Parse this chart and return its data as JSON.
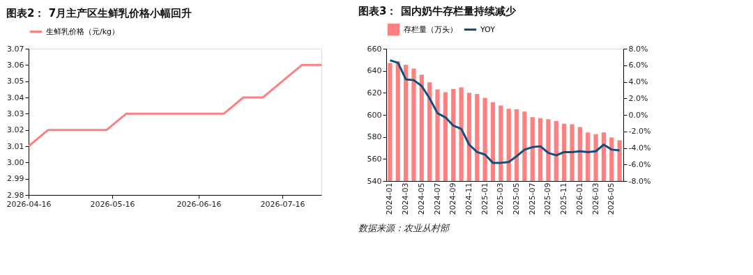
{
  "chart_data": [
    {
      "type": "line",
      "title": "图表2：  7月主产区生鲜乳价格小幅回升",
      "x": [
        "2026-04-16",
        "2026-04-23",
        "2026-04-30",
        "2026-05-07",
        "2026-05-14",
        "2026-05-21",
        "2026-05-28",
        "2026-06-04",
        "2026-06-11",
        "2026-06-18",
        "2026-06-25",
        "2026-07-02",
        "2026-07-09",
        "2026-07-16",
        "2026-07-23",
        "2026-07-30"
      ],
      "series": [
        {
          "name": "生鲜乳价格（元/kg）",
          "color": "#ff7f7f",
          "values": [
            3.01,
            3.02,
            3.02,
            3.02,
            3.02,
            3.03,
            3.03,
            3.03,
            3.03,
            3.03,
            3.03,
            3.04,
            3.04,
            3.05,
            3.06,
            3.06
          ]
        }
      ],
      "xlim": [
        "2026-04-16",
        "2026-07-30"
      ],
      "xticks": [
        "2026-04-16",
        "2026-05-16",
        "2026-06-16",
        "2026-07-16"
      ],
      "ylim": [
        2.98,
        3.07
      ],
      "yticks": [
        2.98,
        2.99,
        {
          "value": 3.0,
          "label": "3.00"
        },
        3.01,
        3.02,
        3.03,
        3.04,
        3.05,
        3.06,
        3.07
      ],
      "grid": false,
      "legend": "top",
      "marker": "none",
      "line_style": "solid"
    },
    {
      "type": "bar",
      "title": "图表3：  国内奶牛存栏量持续减少",
      "categories": [
        "2024-01",
        null,
        "2024-03",
        null,
        "2024-05",
        null,
        "2024-07",
        null,
        "2024-09",
        null,
        "2024-11",
        null,
        "2025-01",
        null,
        "2025-03",
        null,
        "2025-05",
        null,
        "2025-07",
        null,
        "2025-09",
        null,
        "2025-11",
        null,
        "2026-01",
        null,
        "2026-03",
        null,
        "2026-05",
        null
      ],
      "series": [
        {
          "name": "存栏量（万头）",
          "type": "bar",
          "color": "#ff8080",
          "values": [
            647,
            648.5,
            645.5,
            642,
            636.5,
            629.5,
            623,
            620.5,
            623.5,
            625,
            620,
            619,
            615.5,
            611.5,
            608.5,
            605.5,
            605,
            603,
            598,
            597,
            596,
            594.5,
            592,
            591.5,
            589,
            584,
            582.5,
            584,
            579.5,
            577
          ]
        },
        {
          "name": "YOY",
          "type": "line",
          "axis": "y2",
          "color": "#0d4f7f",
          "values": [
            6.6,
            6.3,
            4.3,
            4.2,
            3.5,
            2.0,
            0.2,
            -0.3,
            -1.3,
            -1.7,
            -3.6,
            -4.5,
            -4.8,
            -5.8,
            -5.8,
            -5.7,
            -5.0,
            -4.2,
            -3.9,
            -3.8,
            -4.6,
            -4.9,
            -4.5,
            -4.5,
            -4.4,
            -4.5,
            -4.4,
            -3.6,
            -4.2,
            -4.3
          ]
        }
      ],
      "ylim": [
        540,
        660
      ],
      "yticks": [
        540,
        560,
        580,
        600,
        620,
        640,
        660
      ],
      "y2lim": [
        -8,
        8
      ],
      "y2ticks": [
        {
          "value": -8,
          "label": "-8.0%"
        },
        {
          "value": -6,
          "label": "-6.0%"
        },
        {
          "value": -4,
          "label": "-4.0%"
        },
        {
          "value": -2,
          "label": "-2.0%"
        },
        {
          "value": 0,
          "label": "0.0%"
        },
        {
          "value": 2,
          "label": "2.0%"
        },
        {
          "value": 4,
          "label": "4.0%"
        },
        {
          "value": 6,
          "label": "6.0%"
        },
        {
          "value": 8,
          "label": "8.0%"
        }
      ],
      "grid": false,
      "legend": "top",
      "line_style": "solid",
      "annotations": [
        "数据来源：农业从村部"
      ]
    }
  ]
}
